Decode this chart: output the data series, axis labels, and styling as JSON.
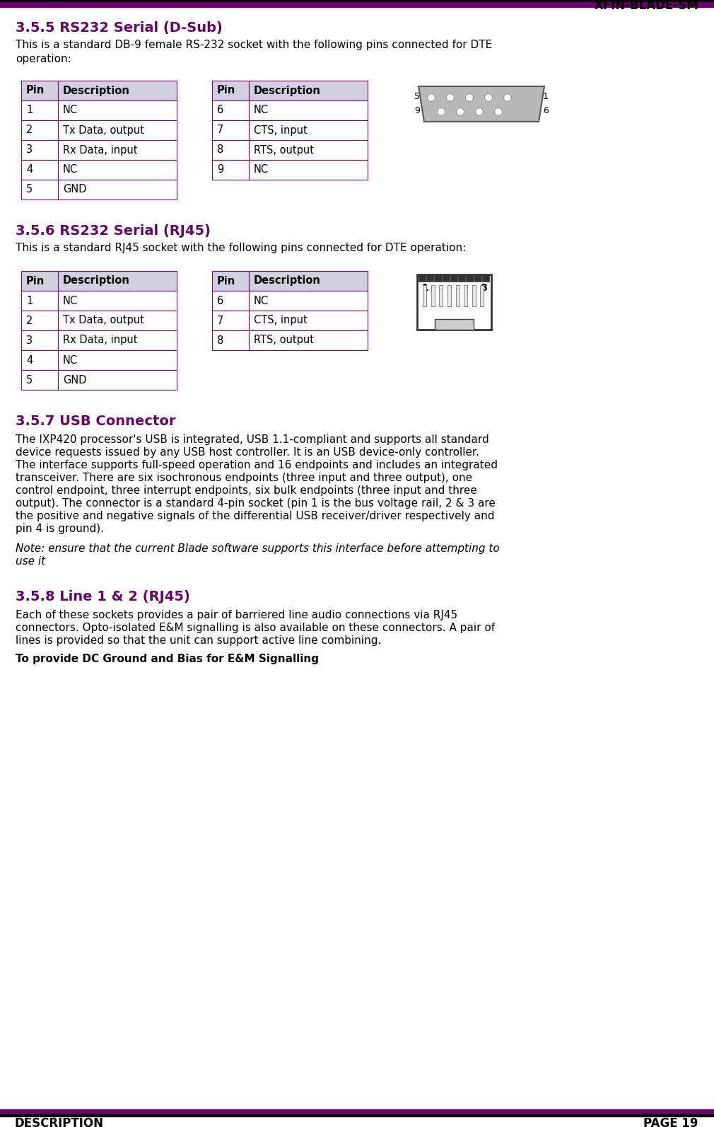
{
  "title_right": "XFIN-BLADE-SM",
  "header_bar_color": "#6b006b",
  "footer_bar_color": "#6b006b",
  "footer_left": "DESCRIPTION",
  "footer_right": "PAGE 19",
  "section_355_title": "3.5.5 RS232 Serial (D-Sub)",
  "section_355_body": "This is a standard DB-9 female RS-232 socket with the following pins connected for DTE\noperation:",
  "section_356_title": "3.5.6 RS232 Serial (RJ45)",
  "section_356_body": "This is a standard RJ45 socket with the following pins connected for DTE operation:",
  "section_357_title": "3.5.7 USB Connector",
  "section_357_body_lines": [
    "The IXP420 processor's USB is integrated, USB 1.1-compliant and supports all standard",
    "device requests issued by any USB host controller. It is an USB device-only controller.",
    "The interface supports full-speed operation and 16 endpoints and includes an integrated",
    "transceiver. There are six isochronous endpoints (three input and three output), one",
    "control endpoint, three interrupt endpoints, six bulk endpoints (three input and three",
    "output). The connector is a standard 4-pin socket (pin 1 is the bus voltage rail, 2 & 3 are",
    "the positive and negative signals of the differential USB receiver/driver respectively and",
    "pin 4 is ground)."
  ],
  "section_357_note_lines": [
    "Note: ensure that the current Blade software supports this interface before attempting to",
    "use it"
  ],
  "section_358_title": "3.5.8 Line 1 & 2 (RJ45)",
  "section_358_body_lines": [
    "Each of these sockets provides a pair of barriered line audio connections via RJ45",
    "connectors. Opto-isolated E&M signalling is also available on these connectors. A pair of",
    "lines is provided so that the unit can support active line combining."
  ],
  "section_358_bold": "To provide DC Ground and Bias for E&M Signalling",
  "table_border_color": "#800080",
  "table_header_bg": "#d0d0e0",
  "section_title_color": "#660066",
  "body_color": "#000000",
  "table355_left": [
    [
      "Pin",
      "Description"
    ],
    [
      "1",
      "NC"
    ],
    [
      "2",
      "Tx Data, output"
    ],
    [
      "3",
      "Rx Data, input"
    ],
    [
      "4",
      "NC"
    ],
    [
      "5",
      "GND"
    ]
  ],
  "table355_right": [
    [
      "Pin",
      "Description"
    ],
    [
      "6",
      "NC"
    ],
    [
      "7",
      "CTS, input"
    ],
    [
      "8",
      "RTS, output"
    ],
    [
      "9",
      "NC"
    ]
  ],
  "table356_left": [
    [
      "Pin",
      "Description"
    ],
    [
      "1",
      "NC"
    ],
    [
      "2",
      "Tx Data, output"
    ],
    [
      "3",
      "Rx Data, input"
    ],
    [
      "4",
      "NC"
    ],
    [
      "5",
      "GND"
    ]
  ],
  "table356_right": [
    [
      "Pin",
      "Description"
    ],
    [
      "6",
      "NC"
    ],
    [
      "7",
      "CTS, input"
    ],
    [
      "8",
      "RTS, output"
    ]
  ]
}
